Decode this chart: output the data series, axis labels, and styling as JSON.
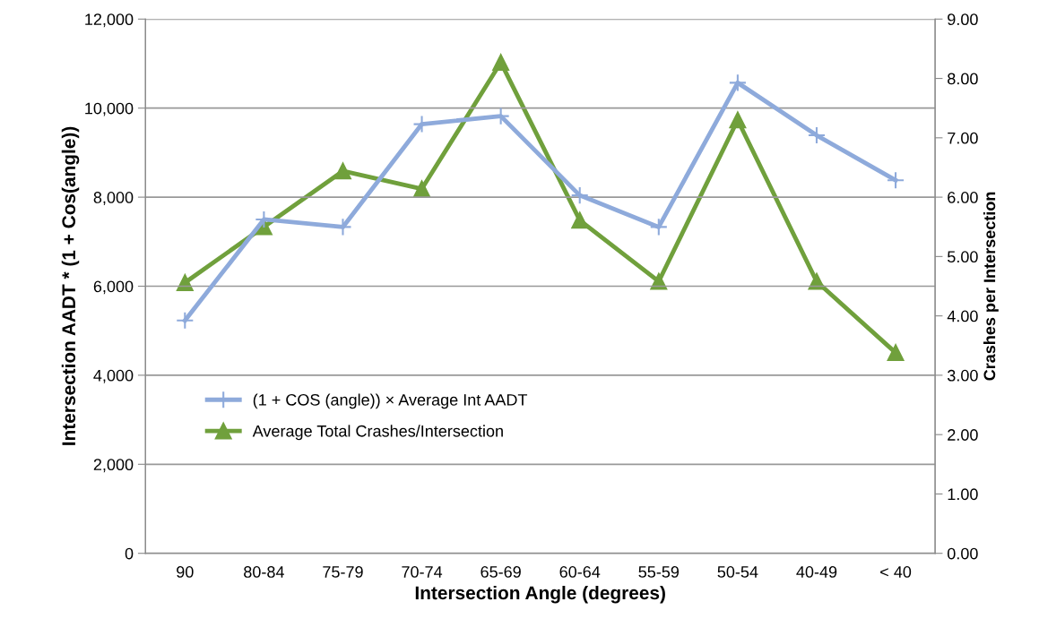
{
  "chart_data": {
    "type": "line",
    "xlabel": "Intersection Angle (degrees)",
    "ylabel": "Intersection AADT * (1 + Cos(angle))",
    "y2label": "Crashes per Intersection",
    "categories": [
      "90",
      "80-84",
      "75-79",
      "70-74",
      "65-69",
      "60-64",
      "55-59",
      "50-54",
      "40-49",
      "< 40"
    ],
    "series": [
      {
        "name": "(1 + COS (angle)) × Average Int AADT",
        "color": "#8eaadb",
        "marker": "cross",
        "values": [
          5230,
          7500,
          7330,
          9640,
          9820,
          8040,
          7330,
          10570,
          9390,
          8380
        ]
      },
      {
        "name": "Average Total Crashes/Intersection",
        "color": "#70a03c",
        "marker": "triangle",
        "axis": "y2",
        "values": [
          4.56,
          5.5,
          6.44,
          6.14,
          8.27,
          5.61,
          4.58,
          7.3,
          4.58,
          3.38
        ]
      }
    ],
    "ylim": [
      0,
      12000
    ],
    "yticks": [
      {
        "value": 0,
        "label": "0"
      },
      {
        "value": 2000,
        "label": "2,000"
      },
      {
        "value": 4000,
        "label": "4,000"
      },
      {
        "value": 6000,
        "label": "6,000"
      },
      {
        "value": 8000,
        "label": "8,000"
      },
      {
        "value": 10000,
        "label": "10,000"
      },
      {
        "value": 12000,
        "label": "12,000"
      }
    ],
    "y2lim": [
      0,
      9
    ],
    "y2ticks": [
      {
        "value": 0,
        "label": "0.00"
      },
      {
        "value": 1,
        "label": "1.00"
      },
      {
        "value": 2,
        "label": "2.00"
      },
      {
        "value": 3,
        "label": "3.00"
      },
      {
        "value": 4,
        "label": "4.00"
      },
      {
        "value": 5,
        "label": "5.00"
      },
      {
        "value": 6,
        "label": "6.00"
      },
      {
        "value": 7,
        "label": "7.00"
      },
      {
        "value": 8,
        "label": "8.00"
      },
      {
        "value": 9,
        "label": "9.00"
      }
    ],
    "grid": "y",
    "legend": "bottom left",
    "line_style": "solid"
  }
}
